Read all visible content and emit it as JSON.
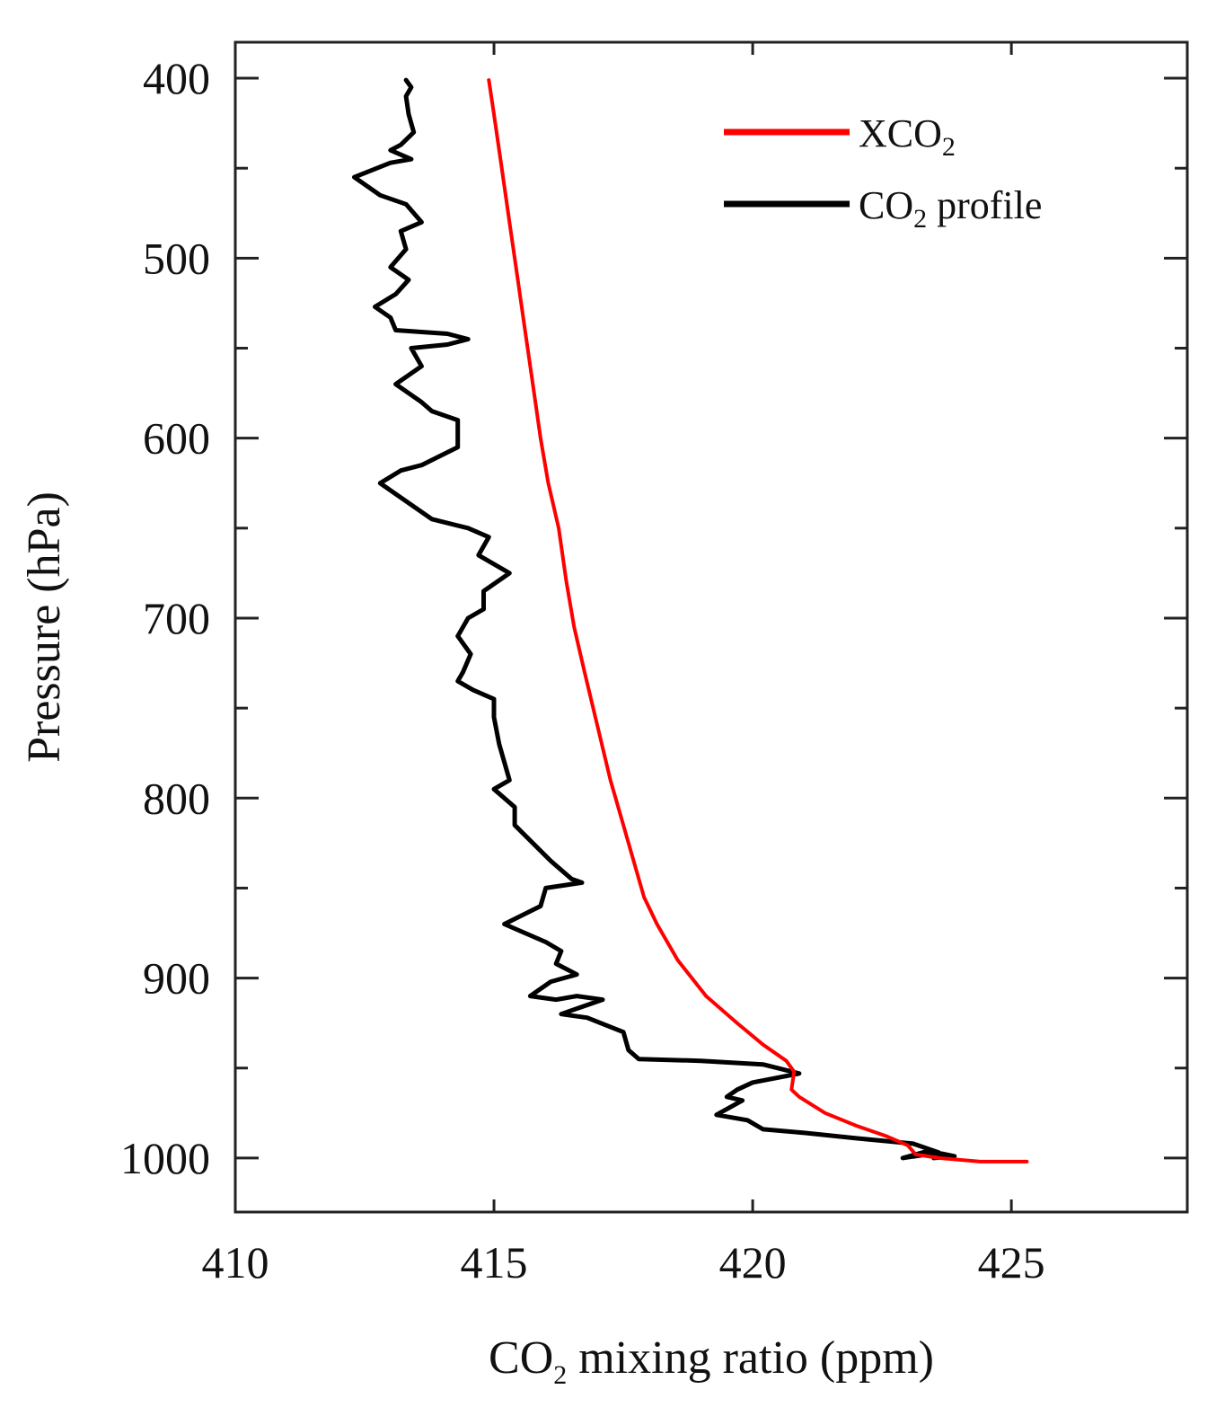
{
  "chart_data": {
    "type": "line",
    "title": "",
    "xlabel": {
      "prefix": "CO",
      "sub": "2",
      "suffix": " mixing ratio (ppm)"
    },
    "ylabel": "Pressure (hPa)",
    "xlim": [
      410,
      428.4
    ],
    "ylim": [
      1030,
      380
    ],
    "y_inverted": true,
    "x_ticks": [
      410,
      415,
      420,
      425
    ],
    "x_tick_labels": [
      "410",
      "415",
      "420",
      "425"
    ],
    "y_ticks": [
      400,
      500,
      600,
      700,
      800,
      900,
      1000
    ],
    "y_tick_labels": [
      "400",
      "500",
      "600",
      "700",
      "800",
      "900",
      "1000"
    ],
    "y_minor_ticks": [
      450,
      550,
      650,
      750,
      850,
      950
    ],
    "grid": false,
    "legend_position": "top-right",
    "series": [
      {
        "name": "XCO2",
        "legend": {
          "prefix": "XCO",
          "sub": "2",
          "suffix": ""
        },
        "color": "#ff0000",
        "points": [
          [
            414.9,
            401
          ],
          [
            415.0,
            420
          ],
          [
            415.15,
            450
          ],
          [
            415.3,
            480
          ],
          [
            415.45,
            510
          ],
          [
            415.6,
            540
          ],
          [
            415.75,
            570
          ],
          [
            415.9,
            600
          ],
          [
            416.05,
            625
          ],
          [
            416.25,
            650
          ],
          [
            416.4,
            680
          ],
          [
            416.55,
            705
          ],
          [
            416.75,
            730
          ],
          [
            417.0,
            760
          ],
          [
            417.25,
            790
          ],
          [
            417.5,
            815
          ],
          [
            417.7,
            835
          ],
          [
            417.9,
            855
          ],
          [
            418.15,
            870
          ],
          [
            418.55,
            890
          ],
          [
            419.1,
            910
          ],
          [
            419.7,
            925
          ],
          [
            420.2,
            937
          ],
          [
            420.65,
            946
          ],
          [
            420.8,
            952
          ],
          [
            420.75,
            962
          ],
          [
            420.9,
            966
          ],
          [
            421.4,
            975
          ],
          [
            422.0,
            982
          ],
          [
            422.6,
            988
          ],
          [
            423.0,
            993
          ],
          [
            423.15,
            998
          ],
          [
            423.6,
            1000
          ],
          [
            424.4,
            1002
          ],
          [
            425.3,
            1002
          ]
        ]
      },
      {
        "name": "CO2 profile",
        "legend": {
          "prefix": "CO",
          "sub": "2",
          "suffix": " profile"
        },
        "color": "#000000",
        "points": [
          [
            413.3,
            401
          ],
          [
            413.4,
            405
          ],
          [
            413.3,
            410
          ],
          [
            413.35,
            420
          ],
          [
            413.45,
            430
          ],
          [
            413.2,
            437
          ],
          [
            413.0,
            440
          ],
          [
            413.4,
            445
          ],
          [
            413.0,
            447
          ],
          [
            412.3,
            455
          ],
          [
            412.8,
            465
          ],
          [
            413.3,
            470
          ],
          [
            413.6,
            480
          ],
          [
            413.2,
            485
          ],
          [
            413.3,
            495
          ],
          [
            413.0,
            505
          ],
          [
            413.35,
            512
          ],
          [
            413.1,
            520
          ],
          [
            412.7,
            527
          ],
          [
            413.0,
            533
          ],
          [
            413.1,
            540
          ],
          [
            414.1,
            542
          ],
          [
            414.5,
            545
          ],
          [
            414.1,
            548
          ],
          [
            413.4,
            550
          ],
          [
            413.6,
            560
          ],
          [
            413.1,
            570
          ],
          [
            413.6,
            580
          ],
          [
            413.8,
            585
          ],
          [
            414.3,
            590
          ],
          [
            414.3,
            605
          ],
          [
            413.6,
            615
          ],
          [
            413.2,
            618
          ],
          [
            412.8,
            625
          ],
          [
            413.3,
            635
          ],
          [
            413.8,
            645
          ],
          [
            414.5,
            650
          ],
          [
            414.9,
            655
          ],
          [
            414.7,
            665
          ],
          [
            415.3,
            675
          ],
          [
            414.8,
            685
          ],
          [
            414.8,
            695
          ],
          [
            414.5,
            700
          ],
          [
            414.3,
            710
          ],
          [
            414.55,
            720
          ],
          [
            414.4,
            730
          ],
          [
            414.3,
            735
          ],
          [
            414.6,
            740
          ],
          [
            415.0,
            745
          ],
          [
            415.0,
            755
          ],
          [
            415.1,
            770
          ],
          [
            415.3,
            790
          ],
          [
            415.0,
            795
          ],
          [
            415.4,
            805
          ],
          [
            415.4,
            815
          ],
          [
            416.1,
            835
          ],
          [
            416.5,
            845
          ],
          [
            416.7,
            847
          ],
          [
            416.0,
            850
          ],
          [
            415.9,
            860
          ],
          [
            415.2,
            870
          ],
          [
            415.6,
            875
          ],
          [
            416.0,
            880
          ],
          [
            416.3,
            885
          ],
          [
            416.2,
            892
          ],
          [
            416.6,
            898
          ],
          [
            416.1,
            902
          ],
          [
            415.7,
            910
          ],
          [
            416.2,
            912
          ],
          [
            416.6,
            910
          ],
          [
            417.1,
            912
          ],
          [
            416.8,
            915
          ],
          [
            416.3,
            920
          ],
          [
            416.8,
            922
          ],
          [
            417.5,
            930
          ],
          [
            417.6,
            940
          ],
          [
            417.8,
            945
          ],
          [
            419.0,
            946
          ],
          [
            420.2,
            948
          ],
          [
            420.9,
            953
          ],
          [
            420.0,
            958
          ],
          [
            419.7,
            962
          ],
          [
            419.5,
            966
          ],
          [
            419.8,
            968
          ],
          [
            419.3,
            976
          ],
          [
            419.9,
            979
          ],
          [
            420.2,
            984
          ],
          [
            421.0,
            986
          ],
          [
            422.0,
            989
          ],
          [
            423.1,
            992
          ],
          [
            423.6,
            997
          ],
          [
            422.9,
            1000
          ],
          [
            423.4,
            996
          ],
          [
            423.9,
            999
          ],
          [
            423.5,
            1000
          ]
        ]
      }
    ]
  }
}
